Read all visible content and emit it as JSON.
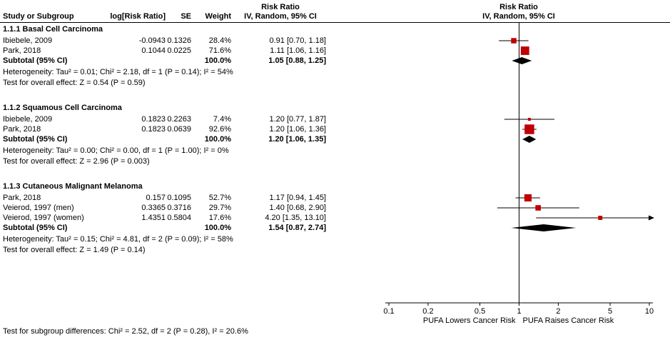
{
  "figure": {
    "headers": {
      "risk_ratio_left": "Risk Ratio",
      "risk_ratio_right": "Risk Ratio",
      "col_study": "Study or Subgroup",
      "col_logrr": "log[Risk Ratio]",
      "col_se": "SE",
      "col_weight": "Weight",
      "col_ci_left": "IV, Random, 95% CI",
      "col_ci_right": "IV, Random, 95% CI"
    }
  },
  "chart_data": {
    "type": "forest",
    "x_scale": "log",
    "x_min": 0.1,
    "x_max": 10,
    "x_ticks": [
      "0.1",
      "0.2",
      "0.5",
      "1",
      "2",
      "5",
      "10"
    ],
    "x_axis_label_left": "PUFA Lowers Cancer Risk",
    "x_axis_label_right": "PUFA Raises Cancer Risk",
    "colors": {
      "marker": "#c00000",
      "diamond": "#000000",
      "line": "#000000"
    },
    "sections": [
      {
        "title": "1.1.1 Basal Cell Carcinoma",
        "studies": [
          {
            "label": "Ibiebele, 2009",
            "log_rr": "-0.0943",
            "se": "0.1326",
            "weight": "28.4%",
            "weight_value": 28.4,
            "ci": "0.91 [0.70, 1.18]",
            "estimate": 0.91,
            "low": 0.7,
            "high": 1.18
          },
          {
            "label": "Park, 2018",
            "log_rr": "0.1044",
            "se": "0.0225",
            "weight": "71.6%",
            "weight_value": 71.6,
            "ci": "1.11 [1.06, 1.16]",
            "estimate": 1.11,
            "low": 1.06,
            "high": 1.16
          }
        ],
        "subtotal": {
          "label": "Subtotal (95% CI)",
          "weight": "100.0%",
          "ci": "1.05 [0.88, 1.25]",
          "estimate": 1.05,
          "low": 0.88,
          "high": 1.25
        },
        "heterogeneity": "Heterogeneity: Tau² = 0.01; Chi² = 2.18, df = 1 (P = 0.14); I² = 54%",
        "overall_effect": "Test for overall effect: Z = 0.54 (P = 0.59)"
      },
      {
        "title": "1.1.2 Squamous Cell Carcinoma",
        "studies": [
          {
            "label": "Ibiebele, 2009",
            "log_rr": "0.1823",
            "se": "0.2263",
            "weight": "7.4%",
            "weight_value": 7.4,
            "ci": "1.20 [0.77, 1.87]",
            "estimate": 1.2,
            "low": 0.77,
            "high": 1.87
          },
          {
            "label": "Park, 2018",
            "log_rr": "0.1823",
            "se": "0.0639",
            "weight": "92.6%",
            "weight_value": 92.6,
            "ci": "1.20 [1.06, 1.36]",
            "estimate": 1.2,
            "low": 1.06,
            "high": 1.36
          }
        ],
        "subtotal": {
          "label": "Subtotal (95% CI)",
          "weight": "100.0%",
          "ci": "1.20 [1.06, 1.35]",
          "estimate": 1.2,
          "low": 1.06,
          "high": 1.35
        },
        "heterogeneity": "Heterogeneity: Tau² = 0.00; Chi² = 0.00, df = 1 (P = 1.00); I² = 0%",
        "overall_effect": "Test for overall effect: Z = 2.96 (P = 0.003)"
      },
      {
        "title": "1.1.3 Cutaneous Malignant Melanoma",
        "studies": [
          {
            "label": "Park, 2018",
            "log_rr": "0.157",
            "se": "0.1095",
            "weight": "52.7%",
            "weight_value": 52.7,
            "ci": "1.17 [0.94, 1.45]",
            "estimate": 1.17,
            "low": 0.94,
            "high": 1.45
          },
          {
            "label": "Veierod, 1997 (men)",
            "log_rr": "0.3365",
            "se": "0.3716",
            "weight": "29.7%",
            "weight_value": 29.7,
            "ci": "1.40 [0.68, 2.90]",
            "estimate": 1.4,
            "low": 0.68,
            "high": 2.9
          },
          {
            "label": "Veierod, 1997 (women)",
            "log_rr": "1.4351",
            "se": "0.5804",
            "weight": "17.6%",
            "weight_value": 17.6,
            "ci": "4.20 [1.35, 13.10]",
            "estimate": 4.2,
            "low": 1.35,
            "high": 13.1
          }
        ],
        "subtotal": {
          "label": "Subtotal (95% CI)",
          "weight": "100.0%",
          "ci": "1.54 [0.87, 2.74]",
          "estimate": 1.54,
          "low": 0.87,
          "high": 2.74
        },
        "heterogeneity": "Heterogeneity: Tau² = 0.15; Chi² = 4.81, df = 2 (P = 0.09); I² = 58%",
        "overall_effect": "Test for overall effect: Z = 1.49 (P = 0.14)"
      }
    ],
    "footer": "Test for subgroup differences: Chi² = 2.52, df = 2 (P = 0.28), I² = 20.6%"
  }
}
